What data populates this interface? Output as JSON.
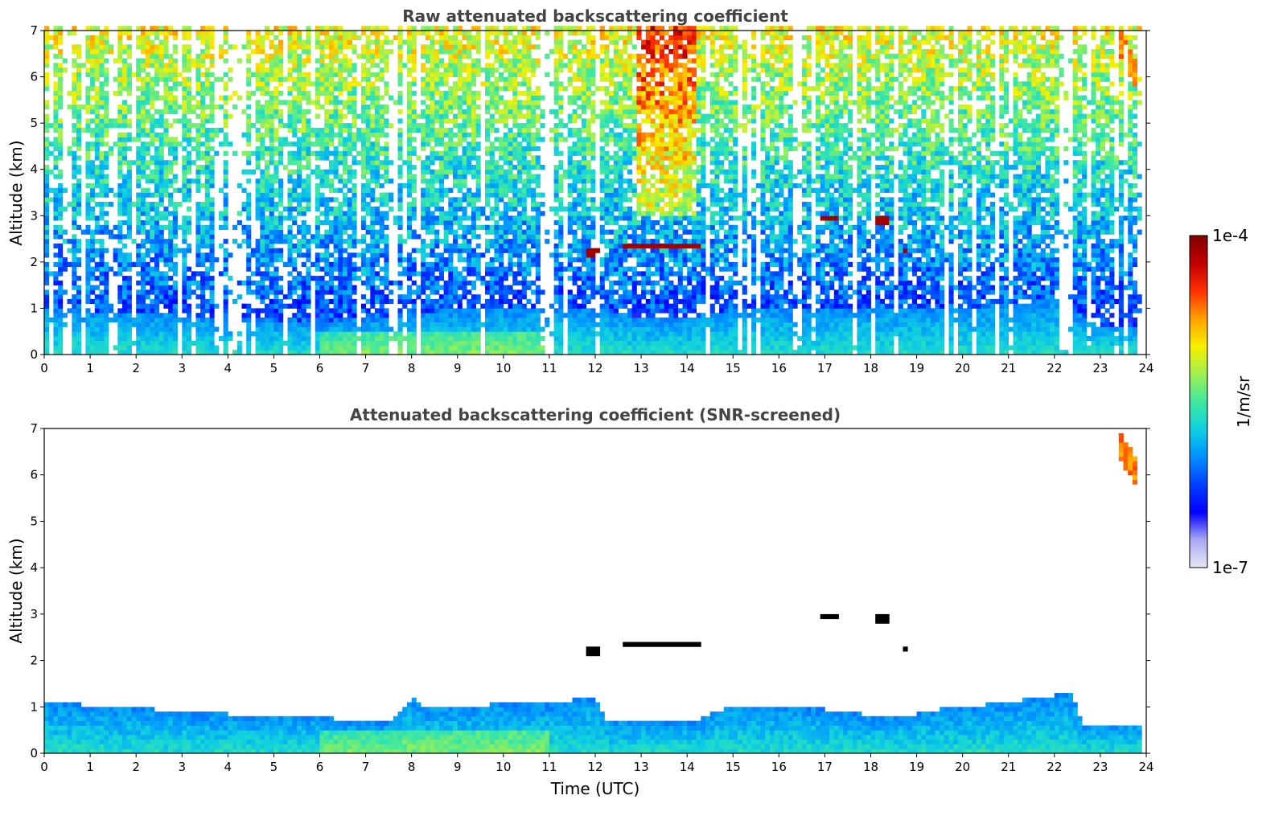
{
  "chart_data": [
    {
      "type": "heatmap",
      "title": "Raw attenuated backscattering coefficient",
      "xlabel": "",
      "ylabel": "Altitude (km)",
      "xlim": [
        0,
        24
      ],
      "ylim": [
        0,
        7
      ],
      "xticks": [
        0,
        1,
        2,
        3,
        4,
        5,
        6,
        7,
        8,
        9,
        10,
        11,
        12,
        13,
        14,
        15,
        16,
        17,
        18,
        19,
        20,
        21,
        22,
        23,
        24
      ],
      "yticks": [
        0,
        1,
        2,
        3,
        4,
        5,
        6,
        7
      ],
      "data_end_hour": 23.85,
      "features": [
        {
          "kind": "boundary_layer",
          "top_km_by_hour": [
            [
              0,
              1.0
            ],
            [
              4,
              0.8
            ],
            [
              6,
              0.7
            ],
            [
              7,
              0.8
            ],
            [
              8,
              0.9
            ],
            [
              9,
              1.0
            ],
            [
              12,
              1.0
            ],
            [
              13,
              0.8
            ],
            [
              14,
              0.8
            ],
            [
              15,
              1.0
            ],
            [
              20,
              1.0
            ],
            [
              22,
              1.2
            ],
            [
              23,
              0.6
            ],
            [
              23.85,
              0.6
            ]
          ]
        },
        {
          "kind": "noise_gradient",
          "note": "signal increases with altitude"
        },
        {
          "kind": "cloud",
          "t0": 11.8,
          "t1": 12.1,
          "z_km": 2.2
        },
        {
          "kind": "cloud",
          "t0": 12.6,
          "t1": 14.3,
          "z_km": 2.35
        },
        {
          "kind": "cloud",
          "t0": 16.9,
          "t1": 17.3,
          "z_km": 2.95
        },
        {
          "kind": "cloud",
          "t0": 18.1,
          "t1": 18.4,
          "z_km": 2.92
        },
        {
          "kind": "cloud",
          "t0": 18.7,
          "t1": 18.8,
          "z_km": 2.25
        },
        {
          "kind": "high_signal_column",
          "t0": 12.9,
          "t1": 14.2
        },
        {
          "kind": "cirrus",
          "t0": 23.3,
          "t1": 23.85,
          "z_top_km": 7.0,
          "z_bottom_km": 5.9
        }
      ]
    },
    {
      "type": "heatmap",
      "title": "Attenuated backscattering coefficient (SNR-screened)",
      "xlabel": "Time (UTC)",
      "ylabel": "Altitude (km)",
      "xlim": [
        0,
        24
      ],
      "ylim": [
        0,
        7
      ],
      "xticks": [
        0,
        1,
        2,
        3,
        4,
        5,
        6,
        7,
        8,
        9,
        10,
        11,
        12,
        13,
        14,
        15,
        16,
        17,
        18,
        19,
        20,
        21,
        22,
        23,
        24
      ],
      "yticks": [
        0,
        1,
        2,
        3,
        4,
        5,
        6,
        7
      ],
      "data_end_hour": 23.85,
      "features": [
        {
          "kind": "boundary_layer",
          "top_km_by_hour": [
            [
              0,
              1.1
            ],
            [
              4,
              0.85
            ],
            [
              6,
              0.8
            ],
            [
              6.5,
              0.7
            ],
            [
              7.5,
              0.7
            ],
            [
              8,
              1.2
            ],
            [
              8.3,
              1.0
            ],
            [
              11,
              1.1
            ],
            [
              12,
              1.2
            ],
            [
              12.2,
              0.75
            ],
            [
              13,
              0.7
            ],
            [
              14.2,
              0.7
            ],
            [
              15,
              1.05
            ],
            [
              17,
              0.95
            ],
            [
              18.5,
              0.75
            ],
            [
              19.5,
              0.95
            ],
            [
              21,
              1.1
            ],
            [
              22.4,
              1.3
            ],
            [
              22.6,
              0.65
            ],
            [
              23.85,
              0.65
            ]
          ]
        },
        {
          "kind": "cloud",
          "t0": 11.8,
          "t1": 12.1,
          "z_km": 2.2
        },
        {
          "kind": "cloud",
          "t0": 12.6,
          "t1": 14.3,
          "z_km": 2.35
        },
        {
          "kind": "cloud",
          "t0": 16.9,
          "t1": 17.3,
          "z_km": 2.95
        },
        {
          "kind": "cloud",
          "t0": 18.1,
          "t1": 18.4,
          "z_km": 2.92
        },
        {
          "kind": "cloud",
          "t0": 18.7,
          "t1": 18.8,
          "z_km": 2.25
        },
        {
          "kind": "cirrus",
          "t0": 23.4,
          "t1": 23.85,
          "z_top_km": 6.65,
          "z_bottom_km": 5.9
        }
      ]
    }
  ],
  "colorbar": {
    "label": "1/m/sr",
    "min_label": "1e-7",
    "max_label": "1e-4",
    "colormap": [
      "#e8e8f8",
      "#a8a8f0",
      "#0000ff",
      "#0040ff",
      "#0090ff",
      "#10d0e0",
      "#40e8a0",
      "#a0f050",
      "#f8f000",
      "#ffa000",
      "#ff3000",
      "#c00000",
      "#800000"
    ]
  },
  "colors": {
    "cloud_raw": "#a00000",
    "cloud_screened": "#000000",
    "axis": "#000000",
    "title": "#444444"
  }
}
